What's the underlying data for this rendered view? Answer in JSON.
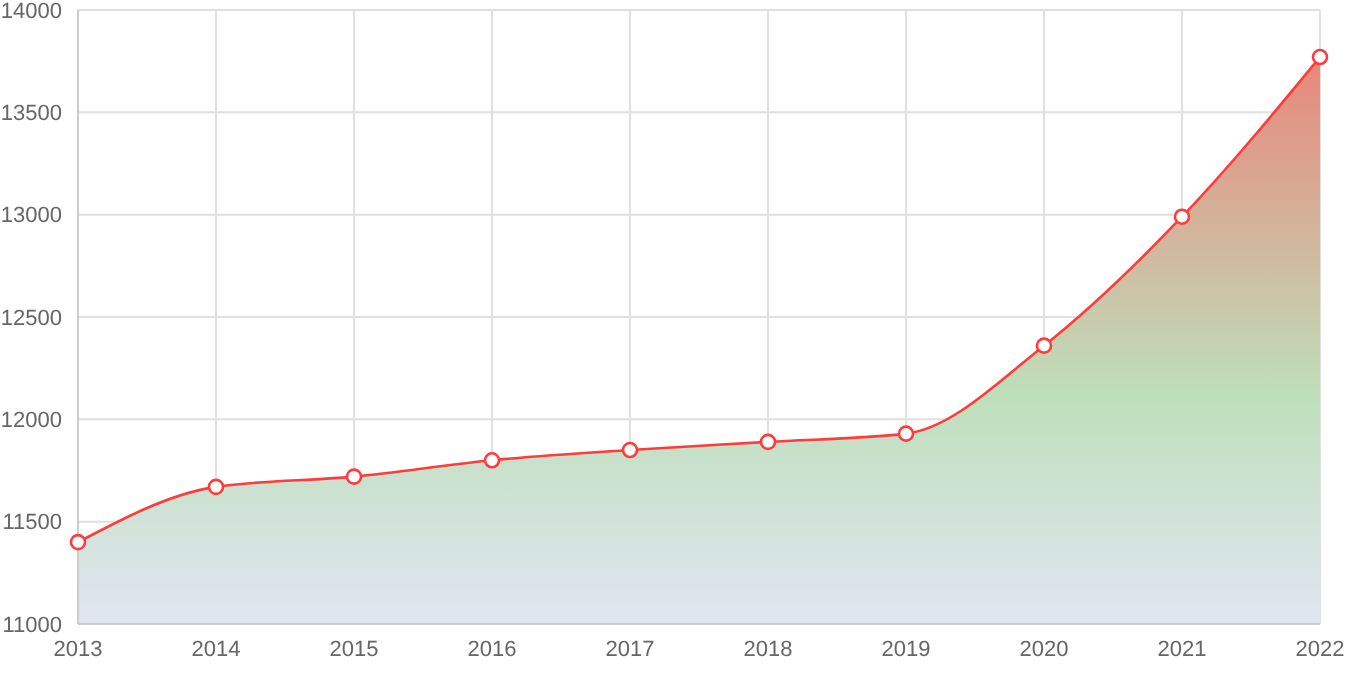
{
  "chart_data": {
    "type": "area",
    "categories": [
      "2013",
      "2014",
      "2015",
      "2016",
      "2017",
      "2018",
      "2019",
      "2020",
      "2021",
      "2022"
    ],
    "series": [
      {
        "color": "#ff3b3b",
        "values": [
          11400,
          11670,
          11720,
          11800,
          11850,
          11890,
          11930,
          12360,
          12990,
          13770
        ]
      }
    ],
    "ylim": [
      11000,
      14000
    ],
    "yticks": [
      11000,
      11500,
      12000,
      12500,
      13000,
      13500,
      14000
    ],
    "grid": true,
    "marker": "circle",
    "line_style": "solid"
  }
}
